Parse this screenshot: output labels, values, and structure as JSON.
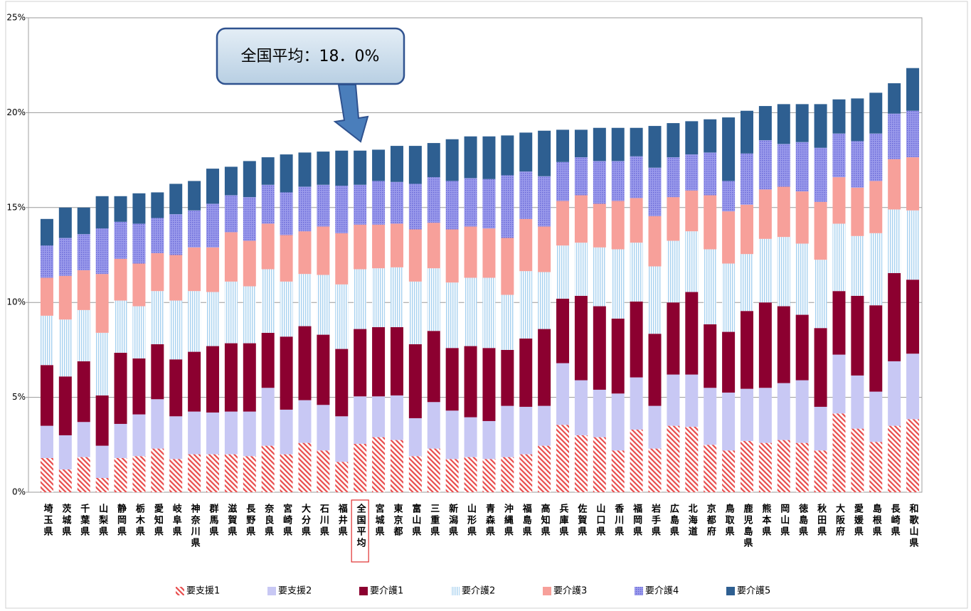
{
  "chart_data": {
    "type": "stacked_bar",
    "annotation": "全国平均：18．0%",
    "categories": [
      "埼玉県",
      "茨城県",
      "千葉県",
      "山梨県",
      "静岡県",
      "栃木県",
      "愛知県",
      "岐阜県",
      "神奈川県",
      "群馬県",
      "滋賀県",
      "長野県",
      "奈良県",
      "宮崎県",
      "大分県",
      "石川県",
      "福井県",
      "全国平均",
      "宮城県",
      "東京都",
      "富山県",
      "三重県",
      "新潟県",
      "山形県",
      "青森県",
      "沖縄県",
      "福島県",
      "高知県",
      "兵庫県",
      "佐賀県",
      "山口県",
      "香川県",
      "福岡県",
      "岩手県",
      "広島県",
      "北海道",
      "京都府",
      "鳥取県",
      "鹿児島県",
      "熊本県",
      "岡山県",
      "徳島県",
      "秋田県",
      "大阪府",
      "愛媛県",
      "島根県",
      "長崎県",
      "和歌山県"
    ],
    "series": [
      {
        "name": "要支援1",
        "color": "#e84c4c",
        "pattern": "diagonal",
        "values": [
          1.8,
          1.2,
          1.85,
          0.75,
          1.8,
          1.9,
          2.3,
          1.75,
          2.0,
          2.0,
          2.0,
          1.9,
          2.45,
          2.0,
          2.6,
          2.2,
          1.6,
          2.55,
          2.9,
          2.75,
          1.9,
          2.3,
          1.75,
          1.85,
          1.75,
          1.85,
          2.0,
          2.45,
          3.55,
          3.0,
          2.9,
          2.2,
          3.3,
          2.3,
          3.5,
          3.45,
          2.5,
          2.2,
          2.7,
          2.6,
          2.75,
          2.6,
          2.2,
          4.15,
          3.35,
          2.65,
          3.5,
          3.85
        ]
      },
      {
        "name": "要支援2",
        "color": "#c8c8f4",
        "values": [
          1.7,
          1.8,
          1.85,
          1.7,
          1.8,
          2.2,
          2.6,
          2.25,
          2.25,
          2.2,
          2.25,
          2.35,
          3.05,
          2.35,
          2.25,
          2.4,
          2.4,
          2.5,
          2.15,
          2.35,
          2.0,
          2.45,
          2.55,
          2.1,
          2.0,
          2.7,
          2.5,
          2.1,
          3.25,
          2.9,
          2.5,
          3.0,
          2.75,
          2.25,
          2.7,
          2.75,
          3.0,
          3.05,
          2.75,
          2.9,
          3.0,
          3.3,
          2.3,
          3.1,
          2.8,
          2.65,
          3.4,
          3.45
        ]
      },
      {
        "name": "要介護1",
        "color": "#8c0030",
        "values": [
          3.2,
          3.1,
          3.2,
          2.65,
          3.75,
          2.95,
          2.9,
          3.0,
          3.15,
          3.5,
          3.6,
          3.6,
          2.9,
          3.85,
          3.9,
          3.7,
          3.55,
          3.55,
          3.65,
          3.6,
          3.9,
          3.75,
          3.3,
          3.75,
          3.85,
          2.95,
          3.6,
          4.05,
          3.4,
          4.45,
          4.4,
          3.95,
          4.0,
          3.8,
          3.8,
          4.35,
          3.35,
          3.2,
          4.1,
          4.5,
          4.05,
          3.45,
          4.15,
          3.35,
          4.2,
          4.55,
          4.65,
          3.9
        ]
      },
      {
        "name": "要介護2",
        "color": "#a8d2f0",
        "pattern": "vertical",
        "values": [
          2.6,
          3.0,
          2.7,
          3.3,
          2.75,
          2.75,
          2.8,
          3.1,
          3.2,
          2.85,
          3.25,
          3.0,
          3.35,
          2.9,
          2.75,
          3.15,
          3.4,
          3.15,
          3.1,
          3.15,
          3.3,
          3.3,
          3.45,
          3.6,
          3.7,
          2.9,
          3.55,
          3.0,
          2.8,
          2.8,
          3.1,
          3.65,
          3.1,
          3.55,
          3.25,
          3.2,
          3.95,
          3.6,
          3.0,
          3.35,
          3.65,
          3.75,
          3.6,
          3.55,
          3.15,
          3.8,
          3.35,
          3.65
        ]
      },
      {
        "name": "要介護3",
        "color": "#f7a09a",
        "values": [
          2.0,
          2.3,
          2.1,
          3.1,
          2.2,
          2.25,
          2.0,
          2.4,
          2.3,
          2.35,
          2.6,
          2.4,
          2.4,
          2.45,
          2.25,
          2.55,
          2.7,
          2.35,
          2.3,
          2.3,
          2.75,
          2.4,
          2.8,
          2.7,
          2.6,
          3.0,
          2.75,
          2.4,
          2.35,
          2.5,
          2.3,
          2.55,
          2.35,
          2.65,
          2.3,
          2.15,
          2.85,
          2.75,
          2.6,
          2.6,
          2.65,
          2.75,
          3.05,
          2.45,
          2.55,
          2.75,
          2.65,
          2.8
        ]
      },
      {
        "name": "要介護4",
        "color": "#9c9cec",
        "pattern": "dots",
        "values": [
          1.7,
          2.0,
          1.9,
          2.4,
          1.95,
          2.1,
          1.85,
          2.15,
          1.95,
          2.3,
          1.95,
          2.3,
          2.05,
          2.25,
          2.35,
          2.2,
          2.5,
          2.1,
          2.3,
          2.2,
          2.4,
          2.4,
          2.55,
          2.55,
          2.6,
          3.3,
          2.5,
          2.65,
          2.05,
          2.0,
          2.25,
          2.1,
          2.2,
          2.55,
          2.1,
          1.9,
          2.25,
          1.6,
          2.7,
          2.6,
          2.25,
          2.6,
          2.85,
          2.3,
          2.45,
          2.5,
          2.4,
          2.45
        ]
      },
      {
        "name": "要介護5",
        "color": "#2e5f91",
        "values": [
          1.4,
          1.6,
          1.4,
          1.7,
          1.35,
          1.6,
          1.35,
          1.6,
          1.55,
          1.85,
          1.5,
          1.9,
          1.45,
          2.0,
          1.8,
          1.75,
          1.85,
          1.8,
          1.65,
          1.9,
          2.0,
          1.8,
          2.2,
          2.2,
          2.25,
          2.1,
          2.05,
          2.4,
          1.7,
          1.45,
          1.75,
          1.75,
          1.5,
          2.2,
          1.8,
          1.75,
          1.75,
          3.35,
          2.25,
          1.8,
          2.1,
          2.0,
          2.3,
          1.8,
          2.25,
          2.15,
          1.6,
          2.25
        ]
      }
    ],
    "ylim": [
      0,
      25
    ],
    "yticks": [
      {
        "value": 0,
        "label": "0%"
      },
      {
        "value": 5,
        "label": "5%"
      },
      {
        "value": 10,
        "label": "10%"
      },
      {
        "value": 15,
        "label": "15%"
      },
      {
        "value": 20,
        "label": "20%"
      },
      {
        "value": 25,
        "label": "25%"
      }
    ],
    "grid": true,
    "legend": "bottom"
  }
}
